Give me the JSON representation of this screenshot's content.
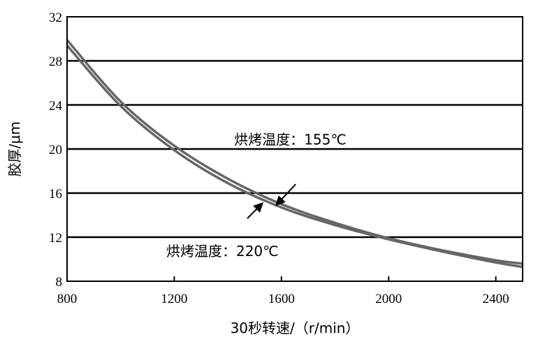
{
  "chart_data": {
    "type": "line",
    "xlabel": "30秒转速/（r/min）",
    "ylabel": "胶厚/μm",
    "xlim": [
      800,
      2500
    ],
    "ylim": [
      8,
      32
    ],
    "xticks": [
      800,
      1200,
      1600,
      2000,
      2400
    ],
    "yticks": [
      8,
      12,
      16,
      20,
      24,
      28,
      32
    ],
    "grid": "horizontal",
    "series": [
      {
        "name": "烘烤温度：155℃",
        "x": [
          800,
          1000,
          1200,
          1400,
          1600,
          1800,
          2000,
          2200,
          2400,
          2500
        ],
        "y": [
          29.9,
          24.3,
          20.3,
          17.3,
          15.0,
          13.3,
          11.9,
          10.8,
          9.9,
          9.6
        ],
        "color": "#666666"
      },
      {
        "name": "烘烤温度：220℃",
        "x": [
          800,
          1000,
          1200,
          1400,
          1600,
          1800,
          2000,
          2200,
          2400,
          2500
        ],
        "y": [
          29.4,
          23.9,
          19.9,
          16.9,
          14.7,
          13.1,
          11.8,
          10.7,
          9.7,
          9.3
        ],
        "color": "#666666"
      }
    ],
    "annotations": [
      {
        "text": "烘烤温度：155℃",
        "target": [
          1580,
          14.9
        ]
      },
      {
        "text": "烘烤温度：220℃",
        "target": [
          1530,
          15.1
        ]
      }
    ]
  }
}
